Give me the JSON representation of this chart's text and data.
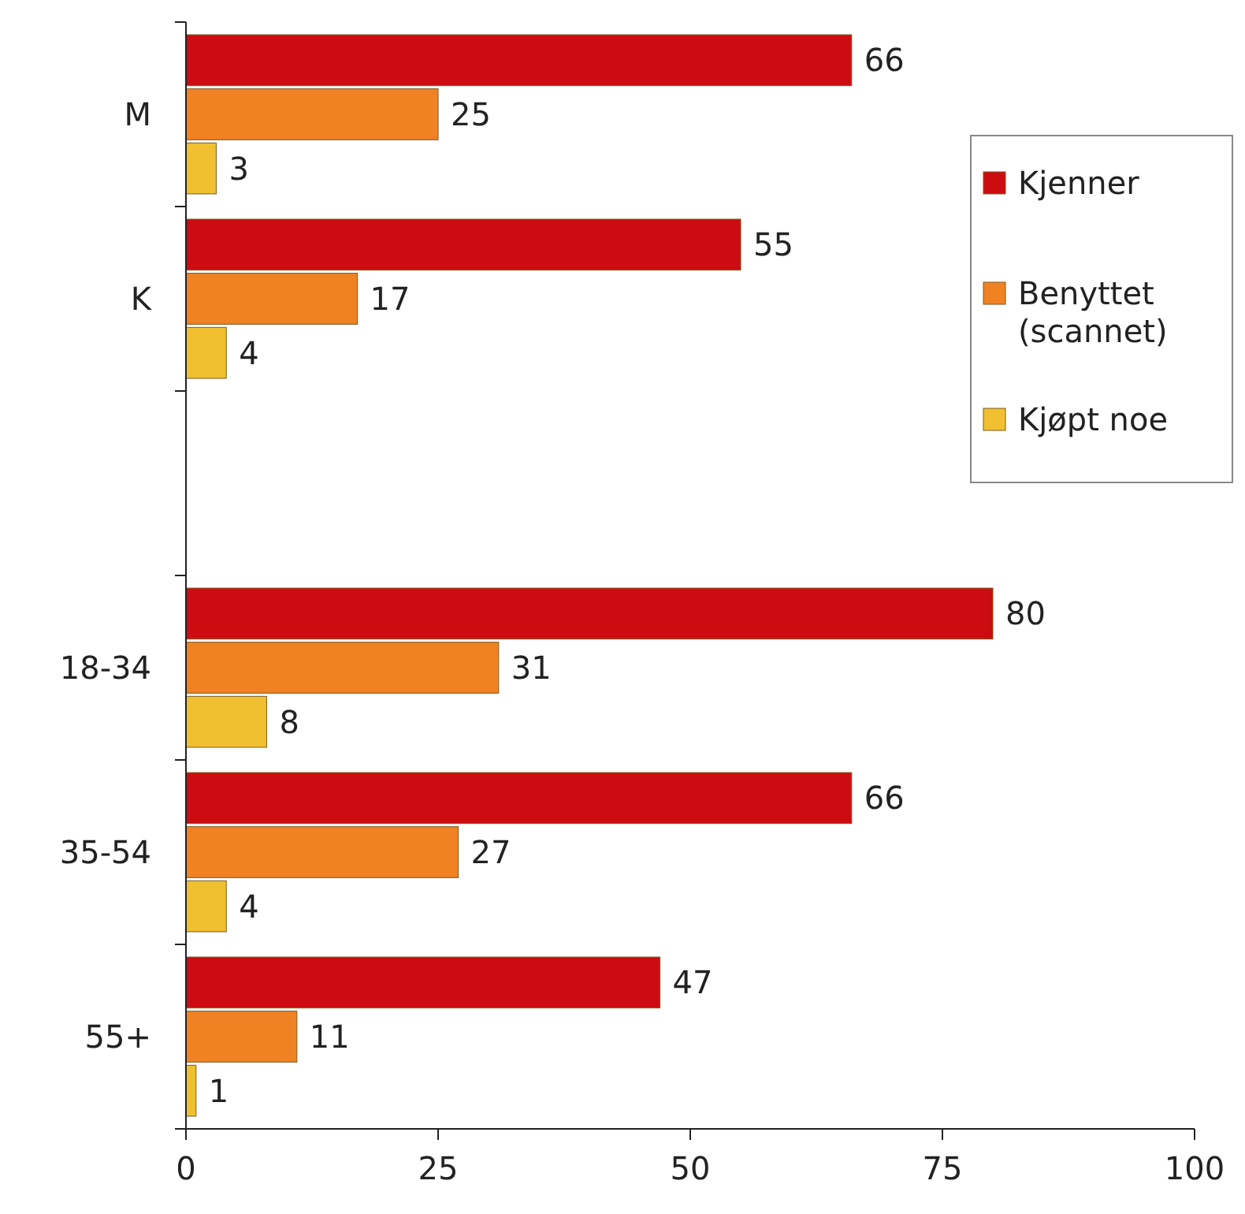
{
  "chart_data": {
    "type": "bar",
    "orientation": "horizontal",
    "categories": [
      "M",
      "K",
      null,
      "18-34",
      "35-54",
      "55+"
    ],
    "series": [
      {
        "name": "Kjenner",
        "color": "#cc0c10",
        "values": [
          66,
          55,
          null,
          80,
          66,
          47
        ]
      },
      {
        "name": "Benyttet (scannet)",
        "color": "#f08224",
        "values": [
          25,
          17,
          null,
          31,
          27,
          11
        ]
      },
      {
        "name": "Kjøpt noe",
        "color": "#f0c030",
        "values": [
          3,
          4,
          null,
          8,
          4,
          1
        ]
      }
    ],
    "xlim": [
      0,
      100
    ],
    "xticks": [
      0,
      25,
      50,
      75,
      100
    ],
    "data_labels": true,
    "legend": "right",
    "grid": false
  }
}
